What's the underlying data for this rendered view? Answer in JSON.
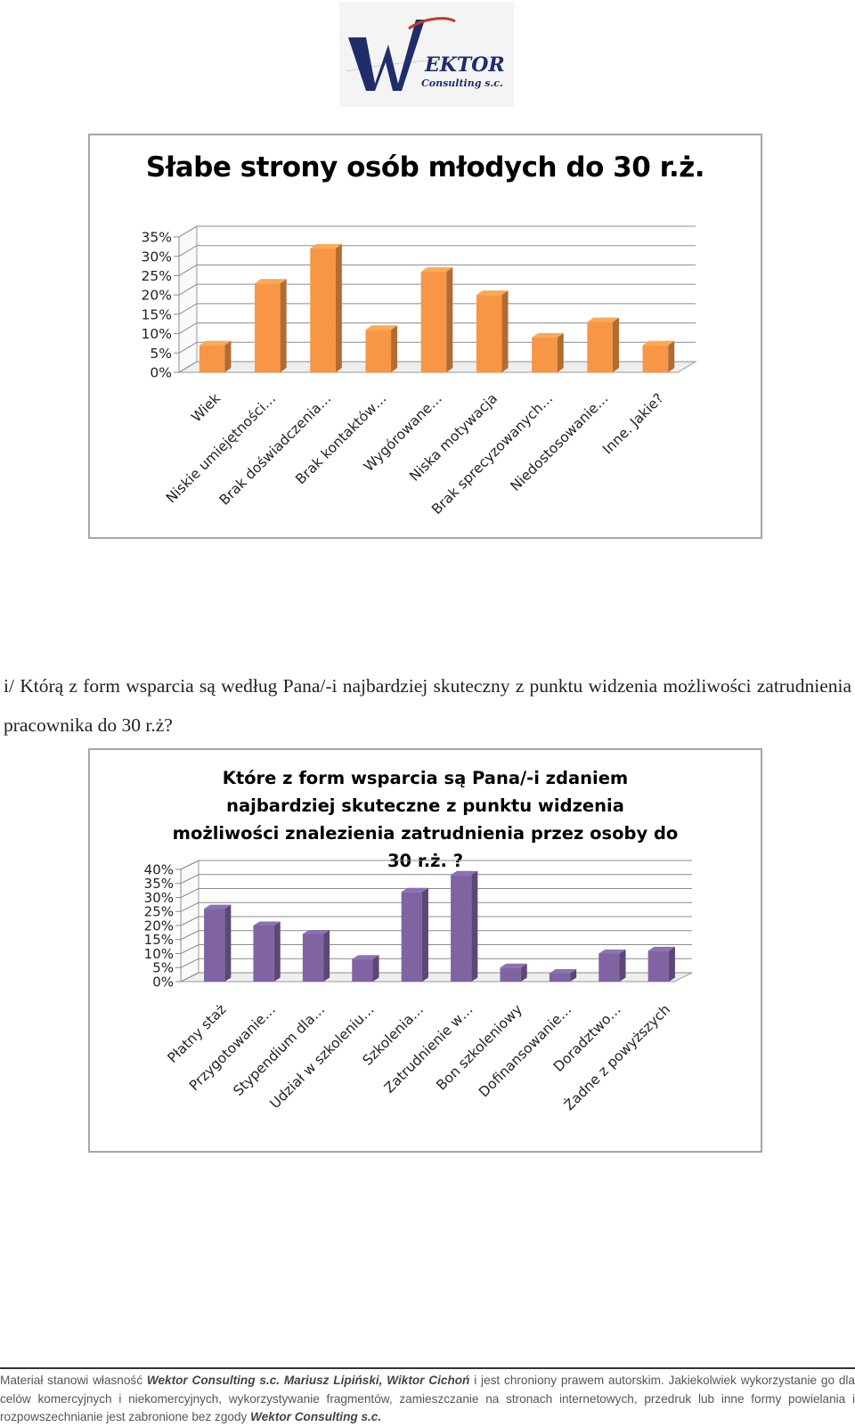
{
  "logo": {
    "text": "EKTOR",
    "subtitle": "Consulting s.c."
  },
  "question": {
    "text": "i/ Którą z form wsparcia są według Pana/-i najbardziej skuteczny z punktu widzenia możliwości zatrudnienia pracownika do 30 r.ż?"
  },
  "footer": {
    "part1": "Materiał stanowi własność ",
    "owner1": "Wektor Consulting s.c. Mariusz Lipiński, Wiktor Cichoń",
    "part2": " i jest chroniony prawem autorskim. Jakiekolwiek wykorzystanie go dla celów komercyjnych i niekomercyjnych, wykorzystywanie fragmentów, zamieszczanie na stronach internetowych, przedruk lub inne formy powielania i rozpowszechnianie jest zabronione bez zgody ",
    "owner2": "Wektor Consulting s.c."
  },
  "colors": {
    "chart1_bar": "#f79646",
    "chart2_bar": "#8064a2"
  },
  "chart_data": [
    {
      "type": "bar",
      "title": "Słabe strony osób młodych do 30 r.ż.",
      "categories": [
        "Wiek",
        "Niskie umiejętności…",
        "Brak doświadczenia…",
        "Brak kontaktów…",
        "Wygórowane…",
        "Niska motywacja",
        "Brak sprecyzowanych…",
        "Niedostosowanie…",
        "Inne. Jakie?"
      ],
      "values": [
        7,
        23,
        32,
        11,
        26,
        20,
        9,
        13,
        7
      ],
      "yticks": [
        "0%",
        "5%",
        "10%",
        "15%",
        "20%",
        "25%",
        "30%",
        "35%"
      ],
      "ylim": [
        0,
        35
      ],
      "unit": "%",
      "grid": true
    },
    {
      "type": "bar",
      "title": "Które z form wsparcia są Pana/-i zdaniem najbardziej skuteczne z punktu widzenia możliwości znalezienia zatrudnienia przez osoby do 30 r.ż. ?",
      "categories": [
        "Płatny staż",
        "Przygotowanie…",
        "Stypendium dla…",
        "Udział w szkoleniu…",
        "Szkolenia…",
        "Zatrudnienie w…",
        "Bon szkoleniowy",
        "Dofinansowanie…",
        "Doradztwo…",
        "Żadne z powyższych"
      ],
      "values": [
        26,
        20,
        17,
        8,
        32,
        38,
        5,
        3,
        10,
        11
      ],
      "yticks": [
        "0%",
        "5%",
        "10%",
        "15%",
        "20%",
        "25%",
        "30%",
        "35%",
        "40%"
      ],
      "ylim": [
        0,
        40
      ],
      "unit": "%",
      "grid": true
    }
  ]
}
